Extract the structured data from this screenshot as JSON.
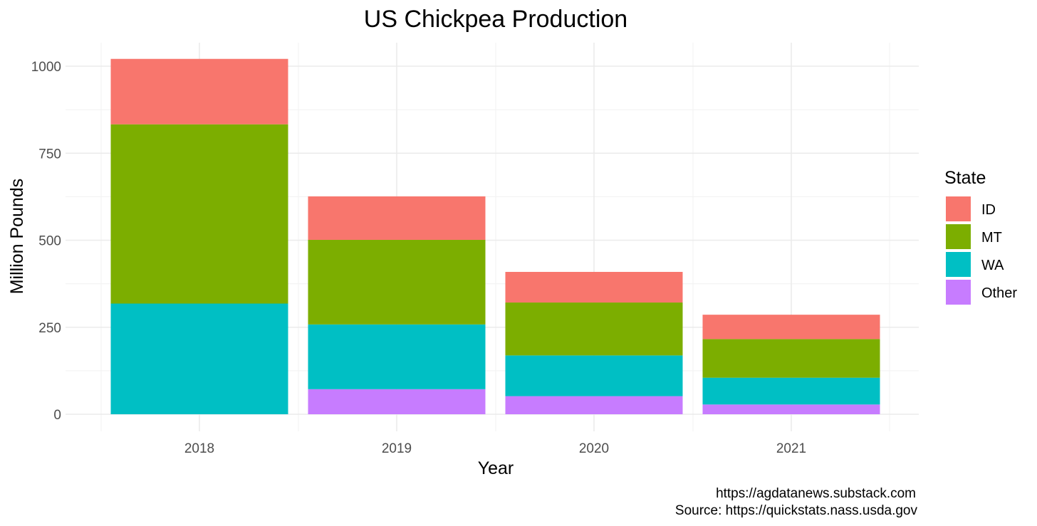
{
  "chart_data": {
    "type": "bar",
    "stacked": true,
    "title": "US Chickpea Production",
    "xlabel": "Year",
    "ylabel": "Million Pounds",
    "categories": [
      "2018",
      "2019",
      "2020",
      "2021"
    ],
    "yticks": [
      0,
      250,
      500,
      750,
      1000
    ],
    "ytick_labels": [
      "0",
      "250",
      "500",
      "750",
      "1000"
    ],
    "ylim": [
      0,
      1070
    ],
    "grid": true,
    "legend": {
      "title": "State",
      "position": "right"
    },
    "series": [
      {
        "name": "Other",
        "color": "#C77CFF",
        "values": [
          0,
          72,
          52,
          28
        ]
      },
      {
        "name": "WA",
        "color": "#00BFC4",
        "values": [
          318,
          186,
          117,
          77
        ]
      },
      {
        "name": "MT",
        "color": "#7CAE00",
        "values": [
          515,
          243,
          152,
          111
        ]
      },
      {
        "name": "ID",
        "color": "#F8766D",
        "values": [
          188,
          125,
          88,
          70
        ]
      }
    ],
    "legend_order": [
      "ID",
      "MT",
      "WA",
      "Other"
    ],
    "caption": [
      "https://agdatanews.substack.com",
      "Source: https://quickstats.nass.usda.gov"
    ]
  }
}
